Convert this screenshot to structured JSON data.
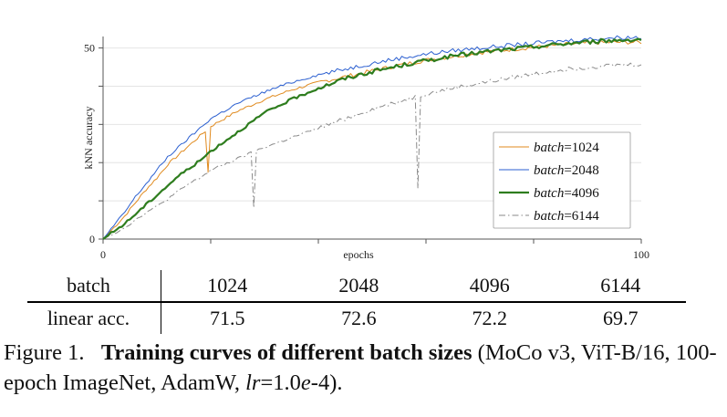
{
  "chart_data": {
    "type": "line",
    "xlabel": "epochs",
    "ylabel": "kNN accuracy",
    "xlim": [
      0,
      100
    ],
    "ylim": [
      0,
      53
    ],
    "xticks": [
      0,
      100
    ],
    "yticks": [
      0,
      50
    ],
    "grid": "horizontal",
    "legend_position": "center-right",
    "series": [
      {
        "name": "batch=1024",
        "name_var": "batch",
        "name_val": "=1024",
        "color": "#e08a1e",
        "style": "solid",
        "width": 1,
        "x": [
          0,
          2,
          4,
          6,
          8,
          10,
          12,
          14,
          16,
          18,
          20,
          25,
          30,
          35,
          40,
          45,
          50,
          55,
          60,
          65,
          70,
          75,
          80,
          85,
          90,
          95,
          100
        ],
        "y": [
          0,
          3,
          6,
          9.5,
          13,
          16,
          19.5,
          22,
          24.5,
          27,
          29.5,
          33.5,
          36.5,
          39,
          41,
          42.5,
          44,
          45.5,
          46.8,
          47.8,
          48.8,
          49.5,
          50.2,
          50.8,
          51.3,
          51.5,
          51.5
        ]
      },
      {
        "name": "batch=2048",
        "name_var": "batch",
        "name_val": "=2048",
        "color": "#2b5fd0",
        "style": "solid",
        "width": 1,
        "x": [
          0,
          2,
          4,
          6,
          8,
          10,
          12,
          14,
          16,
          18,
          20,
          25,
          30,
          35,
          40,
          45,
          50,
          55,
          60,
          65,
          70,
          75,
          80,
          85,
          90,
          95,
          100
        ],
        "y": [
          0,
          3.5,
          7,
          11,
          14.5,
          18,
          21.5,
          24,
          26.5,
          29,
          31.5,
          35.5,
          38.5,
          41,
          43,
          44.5,
          46,
          47.3,
          48.4,
          49.3,
          50,
          50.6,
          51.2,
          51.8,
          52.3,
          52.7,
          52.8
        ]
      },
      {
        "name": "batch=4096",
        "name_var": "batch",
        "name_val": "=4096",
        "color": "#2e7d1e",
        "style": "solid",
        "width": 2.2,
        "x": [
          0,
          2,
          4,
          6,
          8,
          10,
          12,
          14,
          16,
          18,
          20,
          25,
          30,
          35,
          40,
          45,
          50,
          55,
          60,
          65,
          70,
          75,
          80,
          85,
          90,
          95,
          100
        ],
        "y": [
          0,
          2,
          4,
          6.5,
          9,
          11.5,
          14,
          16.5,
          18.5,
          20.5,
          23,
          28,
          33,
          36.5,
          39.5,
          42,
          43.8,
          45.3,
          46.7,
          47.9,
          48.8,
          49.6,
          50.3,
          51,
          51.6,
          52,
          52.3
        ]
      },
      {
        "name": "batch=6144",
        "name_var": "batch",
        "name_val": "=6144",
        "color": "#8a8a8a",
        "style": "dashdot",
        "width": 1,
        "x": [
          0,
          2,
          4,
          6,
          8,
          10,
          12,
          14,
          16,
          18,
          20,
          25,
          30,
          35,
          40,
          45,
          50,
          55,
          60,
          65,
          70,
          75,
          80,
          85,
          90,
          95,
          100
        ],
        "y": [
          0,
          1.5,
          3,
          5,
          7,
          8.5,
          10.5,
          12.5,
          14.5,
          16,
          18,
          21,
          24,
          26.5,
          29,
          31.5,
          34,
          36,
          38,
          39.5,
          40.8,
          42,
          43.2,
          44.3,
          45,
          45.5,
          45.8
        ]
      }
    ],
    "spikes": [
      {
        "series": 0,
        "x": [
          12.6,
          19.5
        ],
        "y": [
          14.5,
          17.5
        ]
      },
      {
        "series": 1,
        "x": [
          19.6
        ],
        "y": [
          21.5
        ]
      },
      {
        "series": 2,
        "x": [
          8.3,
          12.6,
          19.6,
          24.3,
          29.2,
          31.8
        ],
        "y": [
          6,
          11.5,
          15,
          17,
          20,
          30.2
        ]
      },
      {
        "series": 3,
        "x": [
          18.3,
          28.0,
          34.8,
          45.6,
          58.5
        ],
        "y": [
          6.8,
          8.2,
          11,
          16,
          13.3
        ]
      }
    ]
  },
  "table": {
    "header_label": "batch",
    "columns": [
      "1024",
      "2048",
      "4096",
      "6144"
    ],
    "row_label": "linear acc.",
    "values": [
      "71.5",
      "72.6",
      "72.2",
      "69.7"
    ]
  },
  "caption": {
    "prefix": "Figure 1.",
    "bold": "Training curves of different batch sizes",
    "rest": " (MoCo v3, ViT-B/16, 100-epoch ImageNet, AdamW, ",
    "lr_var": "lr",
    "lr_eq": "=1.0",
    "lr_e": "e",
    "lr_exp": "-4)."
  }
}
